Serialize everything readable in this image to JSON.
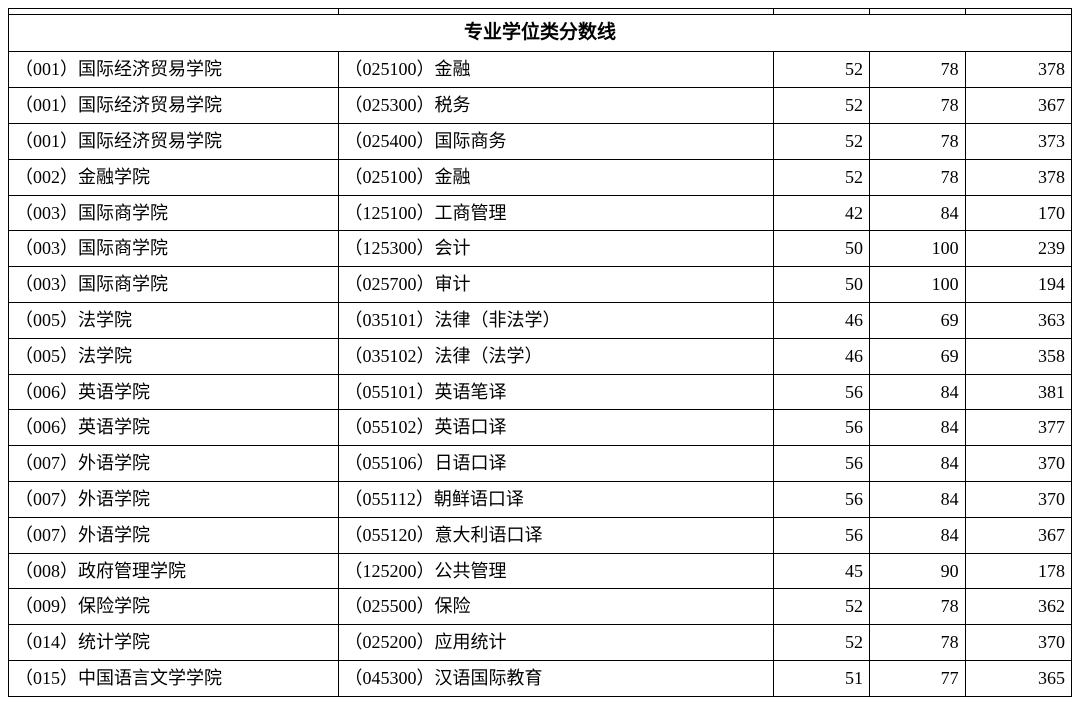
{
  "title": "专业学位类分数线",
  "columns": [
    "dept",
    "major",
    "n1",
    "n2",
    "n3"
  ],
  "col_widths_percent": [
    31,
    41,
    9,
    9,
    10
  ],
  "col_align": [
    "left",
    "left",
    "right",
    "right",
    "right"
  ],
  "border_color": "#000000",
  "background_color": "#ffffff",
  "font_family": "SimSun",
  "body_fontsize": 18,
  "title_fontsize": 19,
  "rows": [
    {
      "dept": "（001）国际经济贸易学院",
      "major": "（025100）金融",
      "n1": "52",
      "n2": "78",
      "n3": "378"
    },
    {
      "dept": "（001）国际经济贸易学院",
      "major": "（025300）税务",
      "n1": "52",
      "n2": "78",
      "n3": "367"
    },
    {
      "dept": "（001）国际经济贸易学院",
      "major": "（025400）国际商务",
      "n1": "52",
      "n2": "78",
      "n3": "373"
    },
    {
      "dept": "（002）金融学院",
      "major": "（025100）金融",
      "n1": "52",
      "n2": "78",
      "n3": "378"
    },
    {
      "dept": "（003）国际商学院",
      "major": "（125100）工商管理",
      "n1": "42",
      "n2": "84",
      "n3": "170"
    },
    {
      "dept": "（003）国际商学院",
      "major": "（125300）会计",
      "n1": "50",
      "n2": "100",
      "n3": "239"
    },
    {
      "dept": "（003）国际商学院",
      "major": "（025700）审计",
      "n1": "50",
      "n2": "100",
      "n3": "194"
    },
    {
      "dept": "（005）法学院",
      "major": "（035101）法律（非法学）",
      "n1": "46",
      "n2": "69",
      "n3": "363"
    },
    {
      "dept": "（005）法学院",
      "major": "（035102）法律（法学）",
      "n1": "46",
      "n2": "69",
      "n3": "358"
    },
    {
      "dept": "（006）英语学院",
      "major": "（055101）英语笔译",
      "n1": "56",
      "n2": "84",
      "n3": "381"
    },
    {
      "dept": "（006）英语学院",
      "major": "（055102）英语口译",
      "n1": "56",
      "n2": "84",
      "n3": "377"
    },
    {
      "dept": "（007）外语学院",
      "major": "（055106）日语口译",
      "n1": "56",
      "n2": "84",
      "n3": "370"
    },
    {
      "dept": "（007）外语学院",
      "major": "（055112）朝鲜语口译",
      "n1": "56",
      "n2": "84",
      "n3": "370"
    },
    {
      "dept": "（007）外语学院",
      "major": "（055120）意大利语口译",
      "n1": "56",
      "n2": "84",
      "n3": "367"
    },
    {
      "dept": "（008）政府管理学院",
      "major": "（125200）公共管理",
      "n1": "45",
      "n2": "90",
      "n3": "178"
    },
    {
      "dept": "（009）保险学院",
      "major": "（025500）保险",
      "n1": "52",
      "n2": "78",
      "n3": "362"
    },
    {
      "dept": "（014）统计学院",
      "major": "（025200）应用统计",
      "n1": "52",
      "n2": "78",
      "n3": "370"
    },
    {
      "dept": "（015）中国语言文学学院",
      "major": "（045300）汉语国际教育",
      "n1": "51",
      "n2": "77",
      "n3": "365"
    }
  ]
}
